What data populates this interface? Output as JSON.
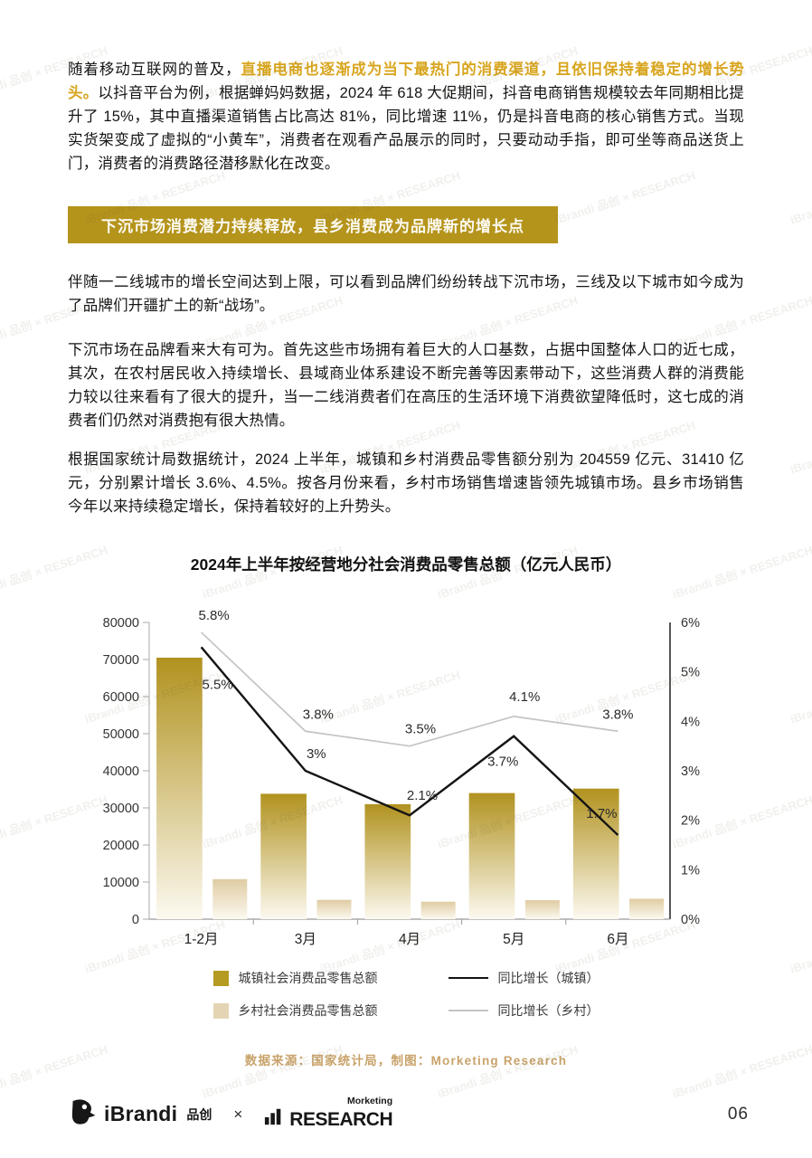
{
  "intro": {
    "lead": "随着移动互联网的普及，",
    "highlight": "直播电商也逐渐成为当下最热门的消费渠道，且依旧保持着稳定的增长势头。",
    "rest": "以抖音平台为例，根据蝉妈妈数据，2024 年 618 大促期间，抖音电商销售规模较去年同期相比提升了 15%，其中直播渠道销售占比高达 81%，同比增速 11%，仍是抖音电商的核心销售方式。当现实货架变成了虚拟的“小黄车”，消费者在观看产品展示的同时，只要动动手指，即可坐等商品送货上门，消费者的消费路径潜移默化在改变。"
  },
  "section_banner": "下沉市场消费潜力持续释放，县乡消费成为品牌新的增长点",
  "paragraphs": [
    "伴随一二线城市的增长空间达到上限，可以看到品牌们纷纷转战下沉市场，三线及以下城市如今成为了品牌们开疆扩土的新“战场”。",
    "下沉市场在品牌看来大有可为。首先这些市场拥有着巨大的人口基数，占据中国整体人口的近七成，其次，在农村居民收入持续增长、县域商业体系建设不断完善等因素带动下，这些消费人群的消费能力较以往来看有了很大的提升，当一二线消费者们在高压的生活环境下消费欲望降低时，这七成的消费者们仍然对消费抱有很大热情。",
    "根据国家统计局数据统计，2024 上半年，城镇和乡村消费品零售额分别为 204559 亿元、31410 亿元，分别累计增长 3.6%、4.5%。按各月份来看，乡村市场销售增速皆领先城镇市场。县乡市场销售今年以来持续稳定增长，保持着较好的上升势头。"
  ],
  "chart_data": {
    "type": "bar+line",
    "title": "2024年上半年按经营地分社会消费品零售总额（亿元人民币）",
    "categories": [
      "1-2月",
      "3月",
      "4月",
      "5月",
      "6月"
    ],
    "bar_series": [
      {
        "name": "城镇社会消费品零售总额",
        "axis": "left",
        "color": "#B1921F",
        "values": [
          70500,
          33800,
          31000,
          34000,
          35200
        ]
      },
      {
        "name": "乡村社会消费品零售总额",
        "axis": "left",
        "color": "#DFCCA2",
        "values": [
          10800,
          5200,
          4700,
          5100,
          5500
        ]
      }
    ],
    "line_series": [
      {
        "name": "同比增长（城镇）",
        "axis": "right",
        "color": "#141414",
        "values": [
          5.5,
          3.0,
          2.1,
          3.7,
          1.7
        ],
        "labels": [
          "5.5%",
          "3%",
          "2.1%",
          "3.7%",
          "1.7%"
        ]
      },
      {
        "name": "同比增长（乡村）",
        "axis": "right",
        "color": "#C4C4C4",
        "values": [
          5.8,
          3.8,
          3.5,
          4.1,
          3.8
        ],
        "labels": [
          "5.8%",
          "3.8%",
          "3.5%",
          "4.1%",
          "3.8%"
        ]
      }
    ],
    "left_axis": {
      "min": 0,
      "max": 80000,
      "step": 10000
    },
    "right_axis": {
      "min": 0,
      "max": 6,
      "step": 1,
      "suffix": "%"
    },
    "grid": false,
    "legend_position": "bottom"
  },
  "source_note": "数据来源：国家统计局，制图：Morketing Research",
  "footer": {
    "ibrandi_name": "iBrandi",
    "ibrandi_suffix": "品创",
    "separator": "×",
    "morketing_script": "Morketing",
    "morketing_name": "RESEARCH",
    "page_number": "06"
  },
  "watermark": {
    "text": "iBrandi 品创  ×  RESEARCH"
  },
  "colors": {
    "banner_gold": "#B5941C",
    "highlight_gold": "#D8A51E",
    "bar_town": "#B1921F",
    "bar_rural": "#DFCCA2",
    "line_town": "#141414",
    "line_rural": "#C4C4C4",
    "source_text": "#C8A36A"
  }
}
